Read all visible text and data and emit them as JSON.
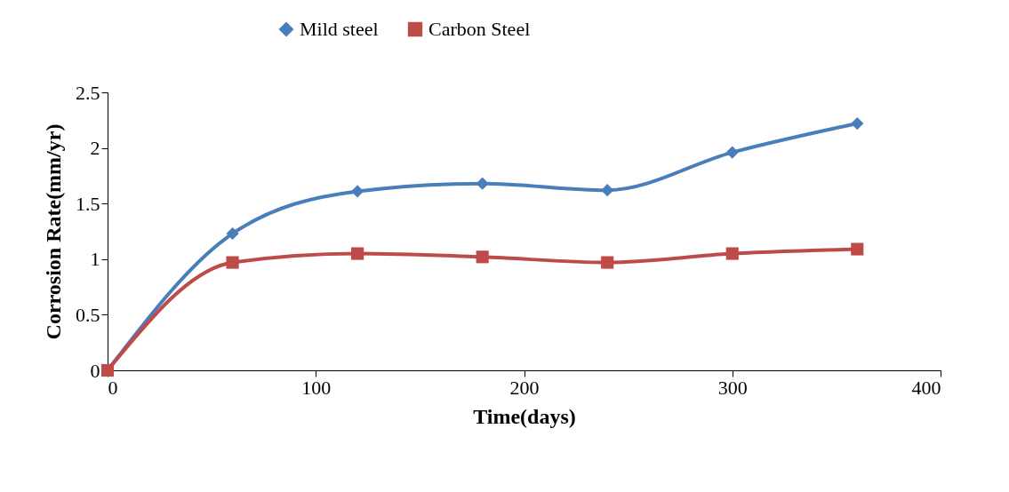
{
  "chart_data": {
    "type": "line",
    "xlabel": "Time(days)",
    "ylabel": "Corrosion Rate(mm/yr)",
    "x": [
      0,
      60,
      120,
      180,
      240,
      300,
      360
    ],
    "series": [
      {
        "name": "Mild steel",
        "color": "#4a7ebb",
        "marker": "diamond",
        "values": [
          0,
          1.23,
          1.61,
          1.68,
          1.62,
          1.96,
          2.22
        ]
      },
      {
        "name": "Carbon Steel",
        "color": "#be4b48",
        "marker": "square",
        "values": [
          0,
          0.97,
          1.05,
          1.02,
          0.97,
          1.05,
          1.09
        ]
      }
    ],
    "xlim": [
      0,
      400
    ],
    "xticks": [
      0,
      100,
      200,
      300,
      400
    ],
    "ylim": [
      0,
      2.5
    ],
    "yticks": [
      0,
      0.5,
      1,
      1.5,
      2,
      2.5
    ],
    "grid": false,
    "legend": "top"
  }
}
